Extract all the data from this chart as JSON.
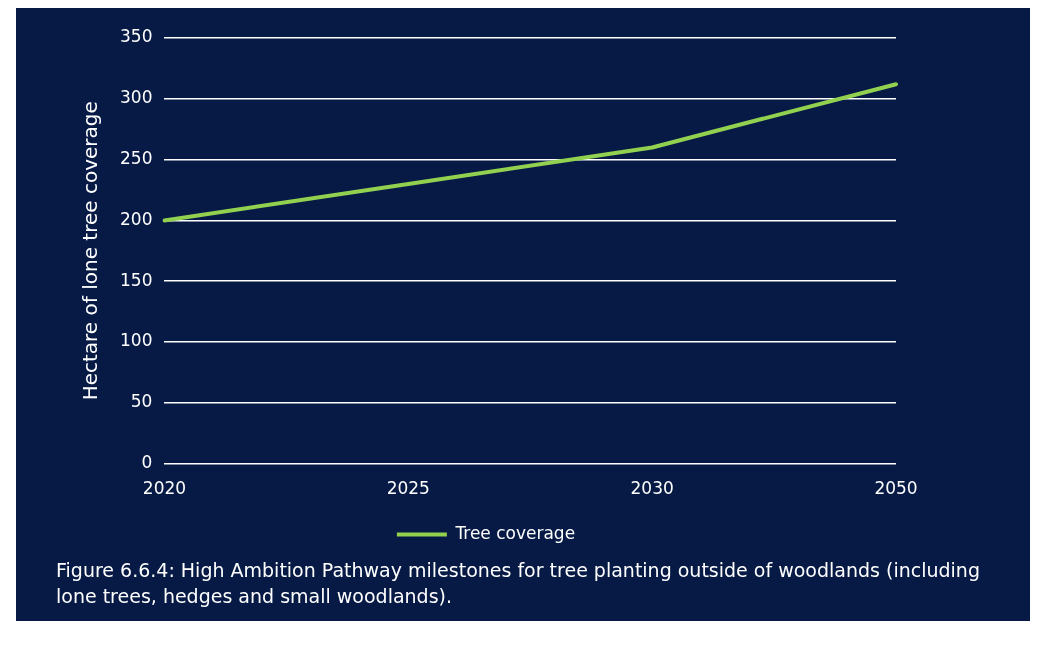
{
  "chart_data": {
    "type": "line",
    "ylabel": "Hectare of lone tree coverage",
    "categories": [
      "2020",
      "2025",
      "2030",
      "2050"
    ],
    "series": [
      {
        "name": "Tree coverage",
        "color": "#92d050",
        "values": [
          200,
          230,
          260,
          312
        ]
      }
    ],
    "ylim": [
      0,
      350
    ],
    "yticks": [
      0,
      50,
      100,
      150,
      200,
      250,
      300,
      350
    ],
    "grid": "y",
    "legend": "bottom",
    "marker": "none",
    "annotations": [
      "Figure 6.6.4: High Ambition Pathway milestones for tree planting outside of woodlands (including lone trees, hedges and small woodlands)."
    ]
  }
}
